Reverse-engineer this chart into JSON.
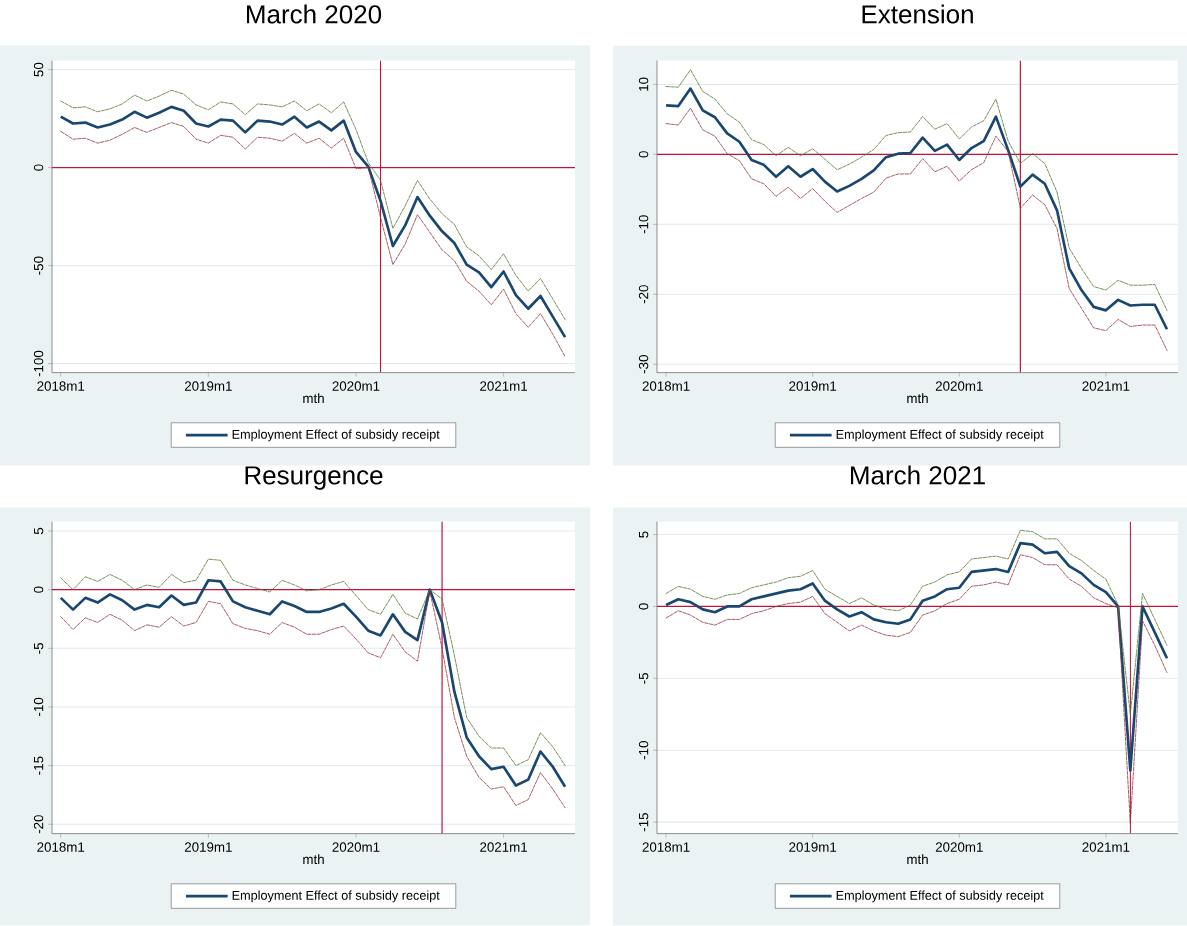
{
  "chart_data": [
    {
      "type": "line",
      "title": "March 2020",
      "xlabel": "mth",
      "grid": "y",
      "legend": "bottom",
      "x": [
        "2018-01",
        "2018-02",
        "2018-03",
        "2018-04",
        "2018-05",
        "2018-06",
        "2018-07",
        "2018-08",
        "2018-09",
        "2018-10",
        "2018-11",
        "2018-12",
        "2019-01",
        "2019-02",
        "2019-03",
        "2019-04",
        "2019-05",
        "2019-06",
        "2019-07",
        "2019-08",
        "2019-09",
        "2019-10",
        "2019-11",
        "2019-12",
        "2020-01",
        "2020-02",
        "2020-03",
        "2020-04",
        "2020-05",
        "2020-06",
        "2020-07",
        "2020-08",
        "2020-09",
        "2020-10",
        "2020-11",
        "2020-12",
        "2021-01",
        "2021-02",
        "2021-03",
        "2021-04",
        "2021-05",
        "2021-06"
      ],
      "xlim": [
        "2017-12-10",
        "2021-06-26"
      ],
      "xticks": [
        {
          "value": "2018-01",
          "label": "2018m1"
        },
        {
          "value": "2019-01",
          "label": "2019m1"
        },
        {
          "value": "2020-01",
          "label": "2020m1"
        },
        {
          "value": "2021-01",
          "label": "2021m1"
        }
      ],
      "ylim": [
        -104.6,
        54.6
      ],
      "yticks": [
        -100,
        -50,
        0,
        50
      ],
      "ref_lines": [
        {
          "axis": "y",
          "value": 0,
          "color": "#c0143c"
        },
        {
          "axis": "x",
          "value": "2020-03",
          "color": "#c0143c"
        }
      ],
      "series": [
        {
          "name": "Employment Effect of subsidy receipt",
          "color": "#1a476f",
          "line_style": "solid",
          "values": [
            26,
            22.5,
            23,
            20.5,
            22,
            24.5,
            28.5,
            25.5,
            28,
            31,
            29,
            22.5,
            21,
            24.5,
            24,
            18,
            24,
            23.5,
            22,
            26,
            20.5,
            23.5,
            19,
            24,
            8,
            0.5,
            -17,
            -40,
            -29.5,
            -15,
            -24.5,
            -32.5,
            -38.5,
            -49.5,
            -53.5,
            -61,
            -53,
            -65,
            -72,
            -65.5,
            -76,
            -86.5
          ]
        },
        {
          "color": "#55752f",
          "line_style": "dashed",
          "values": [
            34,
            30.5,
            31,
            28.5,
            30,
            32.5,
            37,
            34,
            36.5,
            39.5,
            37.5,
            32,
            29.5,
            33.5,
            32.5,
            27,
            32.5,
            32,
            31,
            34,
            29,
            32.5,
            28,
            33.5,
            19.5,
            2.5,
            -6.5,
            -31,
            -19.5,
            -6.5,
            -16,
            -23.5,
            -29,
            -40.5,
            -45,
            -52,
            -44,
            -55,
            -63,
            -56.5,
            -67,
            -77.5
          ]
        },
        {
          "color": "#90353b",
          "line_style": "dashed",
          "values": [
            18.5,
            14.5,
            15,
            12.5,
            14,
            17,
            20.5,
            18,
            20.5,
            23,
            21,
            14.5,
            12.5,
            16.5,
            15.5,
            9.5,
            15.5,
            15,
            13.5,
            17.5,
            12.5,
            15,
            10,
            15,
            -0.5,
            0,
            -25.5,
            -49.5,
            -39,
            -24,
            -33,
            -42,
            -47.5,
            -58,
            -63,
            -70,
            -62,
            -74.5,
            -81.5,
            -74.5,
            -85,
            -96.5
          ]
        }
      ]
    },
    {
      "type": "line",
      "title": "Extension",
      "xlabel": "mth",
      "grid": "y",
      "legend": "bottom",
      "x": [
        "2018-01",
        "2018-02",
        "2018-03",
        "2018-04",
        "2018-05",
        "2018-06",
        "2018-07",
        "2018-08",
        "2018-09",
        "2018-10",
        "2018-11",
        "2018-12",
        "2019-01",
        "2019-02",
        "2019-03",
        "2019-04",
        "2019-05",
        "2019-06",
        "2019-07",
        "2019-08",
        "2019-09",
        "2019-10",
        "2019-11",
        "2019-12",
        "2020-01",
        "2020-02",
        "2020-03",
        "2020-04",
        "2020-05",
        "2020-06",
        "2020-07",
        "2020-08",
        "2020-09",
        "2020-10",
        "2020-11",
        "2020-12",
        "2021-01",
        "2021-02",
        "2021-03",
        "2021-04",
        "2021-05",
        "2021-06"
      ],
      "xlim": [
        "2017-12-09",
        "2021-06-29"
      ],
      "xticks": [
        {
          "value": "2018-01",
          "label": "2018m1"
        },
        {
          "value": "2019-01",
          "label": "2019m1"
        },
        {
          "value": "2020-01",
          "label": "2020m1"
        },
        {
          "value": "2021-01",
          "label": "2021m1"
        }
      ],
      "ylim": [
        -31.2,
        13.4
      ],
      "yticks": [
        -30,
        -20,
        -10,
        0,
        10
      ],
      "ref_lines": [
        {
          "axis": "y",
          "value": 0,
          "color": "#c0143c"
        },
        {
          "axis": "x",
          "value": "2020-06",
          "color": "#c0143c"
        }
      ],
      "series": [
        {
          "name": "Employment Effect of subsidy receipt",
          "color": "#1a476f",
          "line_style": "solid",
          "values": [
            7.0,
            6.9,
            9.4,
            6.3,
            5.3,
            3.0,
            1.8,
            -0.8,
            -1.5,
            -3.2,
            -1.7,
            -3.2,
            -2.1,
            -3.9,
            -5.3,
            -4.5,
            -3.5,
            -2.3,
            -0.4,
            0.1,
            0.2,
            2.4,
            0.5,
            1.4,
            -0.8,
            0.9,
            1.9,
            5.4,
            0.6,
            -4.6,
            -2.9,
            -4.2,
            -8,
            -16.3,
            -19.4,
            -21.8,
            -22.3,
            -20.8,
            -21.6,
            -21.5,
            -21.5,
            -25
          ]
        },
        {
          "color": "#55752f",
          "line_style": "dashed",
          "values": [
            9.7,
            9.6,
            12.1,
            9,
            7.9,
            5.8,
            4.6,
            2.1,
            1.4,
            -0.2,
            1,
            -0.2,
            0.8,
            -0.7,
            -2.2,
            -1.4,
            -0.4,
            0.7,
            2.7,
            3.1,
            3.2,
            5.4,
            3.6,
            4.4,
            2.2,
            3.9,
            4.8,
            7.9,
            1.9,
            -1.3,
            0.1,
            -1.3,
            -5.4,
            -13.4,
            -16.3,
            -18.9,
            -19.4,
            -18,
            -18.7,
            -18.7,
            -18.6,
            -22.3
          ]
        },
        {
          "color": "#90353b",
          "line_style": "dashed",
          "values": [
            4.4,
            4.2,
            6.6,
            3.5,
            2.6,
            0.1,
            -0.9,
            -3.5,
            -4.2,
            -6,
            -4.7,
            -6.3,
            -4.9,
            -6.7,
            -8.3,
            -7.3,
            -6.3,
            -5.4,
            -3.4,
            -2.8,
            -2.8,
            -0.6,
            -2.5,
            -1.7,
            -3.8,
            -2.2,
            -1.2,
            2.6,
            0.4,
            -7.7,
            -5.8,
            -7.2,
            -10.6,
            -19.2,
            -22,
            -24.8,
            -25.2,
            -23.6,
            -24.6,
            -24.4,
            -24.4,
            -28
          ]
        }
      ]
    },
    {
      "type": "line",
      "title": "Resurgence",
      "xlabel": "mth",
      "grid": "y",
      "legend": "bottom",
      "x": [
        "2018-01",
        "2018-02",
        "2018-03",
        "2018-04",
        "2018-05",
        "2018-06",
        "2018-07",
        "2018-08",
        "2018-09",
        "2018-10",
        "2018-11",
        "2018-12",
        "2019-01",
        "2019-02",
        "2019-03",
        "2019-04",
        "2019-05",
        "2019-06",
        "2019-07",
        "2019-08",
        "2019-09",
        "2019-10",
        "2019-11",
        "2019-12",
        "2020-01",
        "2020-02",
        "2020-03",
        "2020-04",
        "2020-05",
        "2020-06",
        "2020-07",
        "2020-08",
        "2020-09",
        "2020-10",
        "2020-11",
        "2020-12",
        "2021-01",
        "2021-02",
        "2021-03",
        "2021-04",
        "2021-05",
        "2021-06"
      ],
      "xlim": [
        "2017-12-10",
        "2021-06-26"
      ],
      "xticks": [
        {
          "value": "2018-01",
          "label": "2018m1"
        },
        {
          "value": "2019-01",
          "label": "2019m1"
        },
        {
          "value": "2020-01",
          "label": "2020m1"
        },
        {
          "value": "2021-01",
          "label": "2021m1"
        }
      ],
      "ylim": [
        -20.8,
        5.8
      ],
      "yticks": [
        -20,
        -15,
        -10,
        -5,
        0,
        5
      ],
      "ref_lines": [
        {
          "axis": "y",
          "value": 0,
          "color": "#c0143c"
        },
        {
          "axis": "x",
          "value": "2020-08",
          "color": "#c0143c"
        }
      ],
      "series": [
        {
          "name": "Employment Effect of subsidy receipt",
          "color": "#1a476f",
          "line_style": "solid",
          "values": [
            -0.7,
            -1.7,
            -0.7,
            -1.1,
            -0.4,
            -0.9,
            -1.7,
            -1.3,
            -1.5,
            -0.5,
            -1.3,
            -1.1,
            0.8,
            0.7,
            -1.0,
            -1.5,
            -1.8,
            -2.1,
            -1.0,
            -1.4,
            -1.9,
            -1.9,
            -1.6,
            -1.2,
            -2.3,
            -3.5,
            -3.9,
            -2.1,
            -3.6,
            -4.3,
            0,
            -2.8,
            -8.7,
            -12.6,
            -14.2,
            -15.3,
            -15.1,
            -16.7,
            -16.2,
            -13.8,
            -15.1,
            -16.8
          ]
        },
        {
          "color": "#55752f",
          "line_style": "dashed",
          "values": [
            1.0,
            0,
            1.1,
            0.7,
            1.3,
            0.8,
            0,
            0.4,
            0.2,
            1.3,
            0.6,
            0.8,
            2.6,
            2.5,
            0.8,
            0.4,
            0.1,
            -0.2,
            0.8,
            0.4,
            -0.1,
            0,
            0.4,
            0.7,
            -0.5,
            -1.7,
            -2.1,
            -0.4,
            -2.0,
            -2.5,
            0,
            -0.8,
            -5.6,
            -10.9,
            -12.5,
            -13.5,
            -13.5,
            -15.0,
            -14.5,
            -12.2,
            -13.4,
            -15.0
          ]
        },
        {
          "color": "#90353b",
          "line_style": "dashed",
          "values": [
            -2.3,
            -3.4,
            -2.4,
            -2.8,
            -2.1,
            -2.6,
            -3.5,
            -3.0,
            -3.2,
            -2.3,
            -3.1,
            -2.8,
            -1.0,
            -1.2,
            -2.9,
            -3.3,
            -3.5,
            -3.8,
            -2.8,
            -3.2,
            -3.8,
            -3.8,
            -3.4,
            -3.1,
            -4.2,
            -5.4,
            -5.8,
            -3.8,
            -5.3,
            -6.1,
            -0.1,
            -5.0,
            -10.9,
            -14.2,
            -16.0,
            -17.0,
            -16.8,
            -18.4,
            -17.9,
            -15.6,
            -17.0,
            -18.6
          ]
        }
      ]
    },
    {
      "type": "line",
      "title": "March 2021",
      "xlabel": "mth",
      "grid": "y",
      "legend": "bottom",
      "x": [
        "2018-01",
        "2018-02",
        "2018-03",
        "2018-04",
        "2018-05",
        "2018-06",
        "2018-07",
        "2018-08",
        "2018-09",
        "2018-10",
        "2018-11",
        "2018-12",
        "2019-01",
        "2019-02",
        "2019-03",
        "2019-04",
        "2019-05",
        "2019-06",
        "2019-07",
        "2019-08",
        "2019-09",
        "2019-10",
        "2019-11",
        "2019-12",
        "2020-01",
        "2020-02",
        "2020-03",
        "2020-04",
        "2020-05",
        "2020-06",
        "2020-07",
        "2020-08",
        "2020-09",
        "2020-10",
        "2020-11",
        "2020-12",
        "2021-01",
        "2021-02",
        "2021-03",
        "2021-04",
        "2021-05",
        "2021-06"
      ],
      "xlim": [
        "2017-12-09",
        "2021-06-29"
      ],
      "xticks": [
        {
          "value": "2018-01",
          "label": "2018m1"
        },
        {
          "value": "2019-01",
          "label": "2019m1"
        },
        {
          "value": "2020-01",
          "label": "2020m1"
        },
        {
          "value": "2021-01",
          "label": "2021m1"
        }
      ],
      "ylim": [
        -15.8,
        5.9
      ],
      "yticks": [
        -15,
        -10,
        -5,
        0,
        5
      ],
      "ref_lines": [
        {
          "axis": "y",
          "value": 0,
          "color": "#c0143c"
        },
        {
          "axis": "x",
          "value": "2021-03",
          "color": "#c0143c"
        }
      ],
      "series": [
        {
          "name": "Employment Effect of subsidy receipt",
          "color": "#1a476f",
          "line_style": "solid",
          "values": [
            0.1,
            0.5,
            0.3,
            -0.2,
            -0.4,
            0,
            0,
            0.5,
            0.7,
            0.9,
            1.1,
            1.2,
            1.6,
            0.4,
            -0.2,
            -0.7,
            -0.4,
            -0.9,
            -1.1,
            -1.2,
            -0.9,
            0.4,
            0.7,
            1.2,
            1.3,
            2.4,
            2.5,
            2.6,
            2.4,
            4.4,
            4.3,
            3.7,
            3.8,
            2.8,
            2.3,
            1.5,
            1.0,
            0,
            -11.4,
            0,
            -1.8,
            -3.6
          ]
        },
        {
          "color": "#55752f",
          "line_style": "dashed",
          "values": [
            0.9,
            1.4,
            1.2,
            0.7,
            0.5,
            0.8,
            0.9,
            1.3,
            1.5,
            1.7,
            2.0,
            2.1,
            2.5,
            1.2,
            0.7,
            0.2,
            0.6,
            0.1,
            -0.2,
            -0.3,
            0.1,
            1.4,
            1.7,
            2.2,
            2.4,
            3.3,
            3.4,
            3.5,
            3.3,
            5.3,
            5.2,
            4.7,
            4.7,
            3.7,
            3.2,
            2.5,
            1.9,
            0.1,
            -7.5,
            0.9,
            -0.9,
            -2.7
          ]
        },
        {
          "color": "#90353b",
          "line_style": "dashed",
          "values": [
            -0.8,
            -0.3,
            -0.6,
            -1.1,
            -1.3,
            -0.9,
            -0.9,
            -0.5,
            -0.3,
            0,
            0.2,
            0.3,
            0.7,
            -0.5,
            -1.1,
            -1.7,
            -1.3,
            -1.7,
            -2.0,
            -2.1,
            -1.8,
            -0.6,
            -0.3,
            0.2,
            0.5,
            1.4,
            1.5,
            1.7,
            1.5,
            3.6,
            3.4,
            2.9,
            2.9,
            1.9,
            1.4,
            0.6,
            0.2,
            -0.1,
            -15.1,
            -1.0,
            -2.7,
            -4.6
          ]
        }
      ]
    }
  ]
}
